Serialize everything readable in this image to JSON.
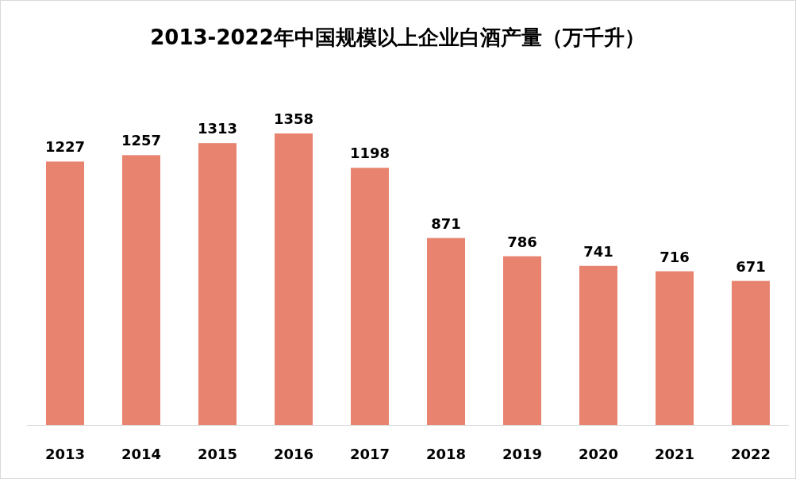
{
  "chart_data": {
    "type": "bar",
    "title": "2013-2022年中国规模以上企业白酒产量（万千升）",
    "categories": [
      "2013",
      "2014",
      "2015",
      "2016",
      "2017",
      "2018",
      "2019",
      "2020",
      "2021",
      "2022"
    ],
    "values": [
      1227,
      1257,
      1313,
      1358,
      1198,
      871,
      786,
      741,
      716,
      671
    ],
    "color": "#e8836f",
    "data_labels": true
  }
}
